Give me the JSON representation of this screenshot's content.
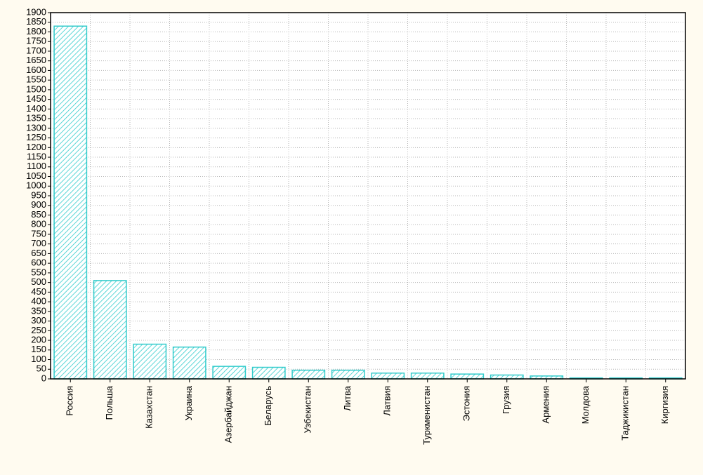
{
  "chart_data": {
    "type": "bar",
    "categories": [
      "Россия",
      "Польша",
      "Казахстан",
      "Украина",
      "Азербайджан",
      "Беларусь",
      "Узбекистан",
      "Литва",
      "Латвия",
      "Туркменистан",
      "Эстония",
      "Грузия",
      "Армения",
      "Молдова",
      "Таджикистан",
      "Киргизия"
    ],
    "values": [
      1830,
      510,
      180,
      165,
      65,
      60,
      45,
      45,
      30,
      30,
      25,
      20,
      15,
      5,
      5,
      5
    ],
    "color": "#33cccc",
    "ylim": [
      0,
      1900
    ],
    "yticks": [
      0,
      50,
      100,
      150,
      200,
      250,
      300,
      350,
      400,
      450,
      500,
      550,
      600,
      650,
      700,
      750,
      800,
      850,
      900,
      950,
      1000,
      1050,
      1100,
      1150,
      1200,
      1250,
      1300,
      1350,
      1400,
      1450,
      1500,
      1550,
      1600,
      1650,
      1700,
      1750,
      1800,
      1850,
      1900
    ],
    "grid": true
  }
}
